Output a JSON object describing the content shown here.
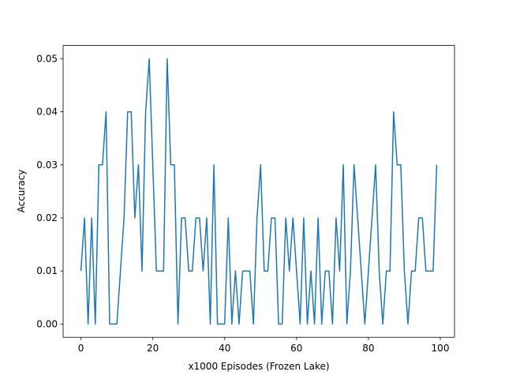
{
  "chart_data": {
    "type": "line",
    "title": "",
    "xlabel": "x1000 Episodes (Frozen Lake)",
    "ylabel": "Accuracy",
    "xlim": [
      -4.95,
      103.95
    ],
    "ylim": [
      -0.0025,
      0.0525
    ],
    "xticks": [
      0,
      20,
      40,
      60,
      80,
      100
    ],
    "xtick_labels": [
      "0",
      "20",
      "40",
      "60",
      "80",
      "100"
    ],
    "yticks": [
      0.0,
      0.01,
      0.02,
      0.03,
      0.04,
      0.05
    ],
    "ytick_labels": [
      "0.00",
      "0.01",
      "0.02",
      "0.03",
      "0.04",
      "0.05"
    ],
    "grid": false,
    "line_color": "#1f77b4",
    "series": [
      {
        "x": [
          0,
          1,
          2,
          3,
          4,
          5,
          6,
          7,
          8,
          9,
          10,
          11,
          12,
          13,
          14,
          15,
          16,
          17,
          18,
          19,
          20,
          21,
          22,
          23,
          24,
          25,
          26,
          27,
          28,
          29,
          30,
          31,
          32,
          33,
          34,
          35,
          36,
          37,
          38,
          39,
          40,
          41,
          42,
          43,
          44,
          45,
          46,
          47,
          48,
          49,
          50,
          51,
          52,
          53,
          54,
          55,
          56,
          57,
          58,
          59,
          60,
          61,
          62,
          63,
          64,
          65,
          66,
          67,
          68,
          69,
          70,
          71,
          72,
          73,
          74,
          75,
          76,
          77,
          78,
          79,
          80,
          81,
          82,
          83,
          84,
          85,
          86,
          87,
          88,
          89,
          90,
          91,
          92,
          93,
          94,
          95,
          96,
          97,
          98,
          99
        ],
        "values": [
          0.01,
          0.02,
          0.0,
          0.02,
          0.0,
          0.03,
          0.03,
          0.04,
          0.0,
          0.0,
          0.0,
          0.01,
          0.02,
          0.04,
          0.04,
          0.02,
          0.03,
          0.01,
          0.04,
          0.05,
          0.03,
          0.01,
          0.01,
          0.01,
          0.05,
          0.03,
          0.03,
          0.0,
          0.02,
          0.02,
          0.01,
          0.01,
          0.02,
          0.02,
          0.01,
          0.02,
          0.0,
          0.03,
          0.0,
          0.0,
          0.0,
          0.02,
          0.0,
          0.01,
          0.0,
          0.01,
          0.01,
          0.01,
          0.0,
          0.02,
          0.03,
          0.01,
          0.01,
          0.02,
          0.02,
          0.0,
          0.0,
          0.02,
          0.01,
          0.02,
          0.01,
          0.0,
          0.02,
          0.0,
          0.01,
          0.0,
          0.02,
          0.0,
          0.01,
          0.01,
          0.0,
          0.02,
          0.01,
          0.03,
          0.0,
          0.01,
          0.03,
          0.02,
          0.01,
          0.0,
          0.01,
          0.02,
          0.03,
          0.01,
          0.0,
          0.01,
          0.01,
          0.04,
          0.03,
          0.03,
          0.01,
          0.0,
          0.01,
          0.01,
          0.02,
          0.02,
          0.01,
          0.01,
          0.01,
          0.03
        ]
      }
    ]
  }
}
